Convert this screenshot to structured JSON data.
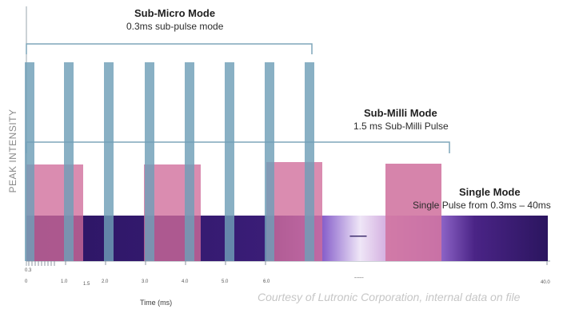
{
  "diagram": {
    "y_axis_label": "PEAK INTENSITY",
    "x_axis_label": "Time (ms)",
    "credit": "Courtesy of Lutronic Corporation, internal data on file",
    "modes": {
      "sub_micro": {
        "title": "Sub-Micro Mode",
        "subtitle": "0.3ms sub-pulse mode"
      },
      "sub_milli": {
        "title": "Sub-Milli Mode",
        "subtitle": "1.5 ms Sub-Milli Pulse"
      },
      "single": {
        "title": "Single Mode",
        "subtitle": "Single Pulse from 0.3ms – 40ms"
      }
    },
    "gap_marker": "-------",
    "x_ticks": {
      "t0_3": "0.3",
      "t0": "0",
      "t1_0": "1.0",
      "t1_5": "1.5",
      "t2_0": "2.0",
      "t3_0": "3.0",
      "t4_0": "4.0",
      "t5_0": "5.0",
      "t6_0": "6.0",
      "t40": "40.0",
      "dash": "-----"
    },
    "colors": {
      "sub_micro_bar": "#6f9fb7",
      "sub_milli_bar": "#cf6b9a",
      "single_band_dark": "#2d1766",
      "single_band_light": "#9a6fd2",
      "bracket": "#7fa6ba"
    },
    "sub_micro_pulse_count": 8,
    "sub_milli_pulse_count": 4
  }
}
